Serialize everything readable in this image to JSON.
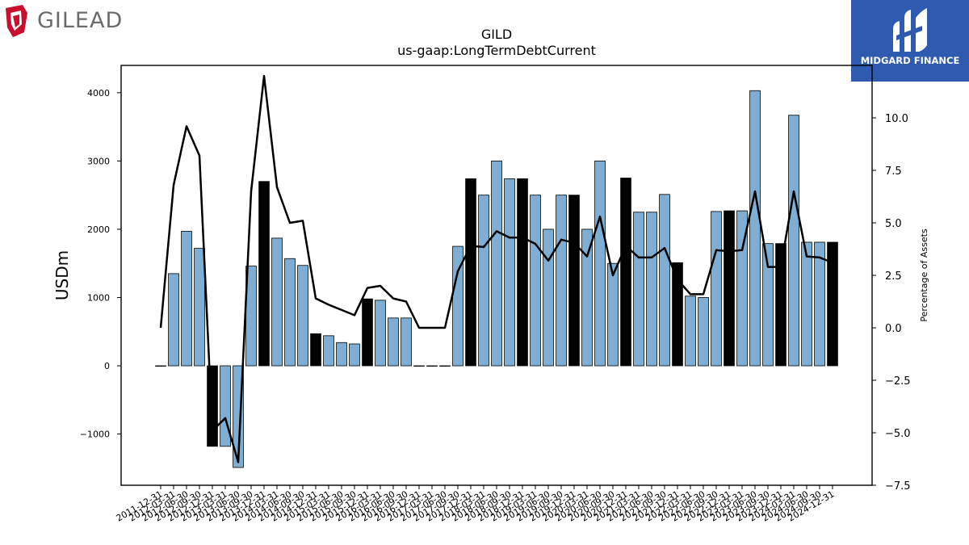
{
  "brand": {
    "left_logo_text": "GILEAD",
    "right_logo_text": "MIDGARD FINANCE",
    "left_logo_color": "#c8102e",
    "right_logo_bg": "#2e5bb0"
  },
  "chart_data": {
    "type": "bar",
    "title": "GILD",
    "subtitle": "us-gaap:LongTermDebtCurrent",
    "ylabel": "USDm",
    "y2label": "Percentage of Assets",
    "ylim": [
      -1750,
      4400
    ],
    "y2lim": [
      -7.5,
      12.5
    ],
    "yticks": [
      -1000,
      0,
      1000,
      2000,
      3000,
      4000
    ],
    "yticklabels": [
      "−1000",
      "0",
      "1000",
      "2000",
      "3000",
      "4000"
    ],
    "y2ticks": [
      -7.5,
      -5.0,
      -2.5,
      0.0,
      2.5,
      5.0,
      7.5,
      10.0
    ],
    "y2ticklabels": [
      "−7.5",
      "−5.0",
      "−2.5",
      "0.0",
      "2.5",
      "5.0",
      "7.5",
      "10.0"
    ],
    "grid": false,
    "bar_colors": {
      "quarter": "#7eaed3",
      "year_end": "#000000"
    },
    "line_color": "#000000",
    "categories": [
      "2011-12-31",
      "2012-03-31",
      "2012-06-30",
      "2012-09-30",
      "2012-12-31",
      "2013-03-31",
      "2013-06-30",
      "2013-09-30",
      "2013-12-31",
      "2014-03-31",
      "2014-06-30",
      "2014-09-30",
      "2014-12-31",
      "2015-03-31",
      "2015-06-30",
      "2015-09-30",
      "2015-12-31",
      "2016-03-31",
      "2016-06-30",
      "2016-09-30",
      "2016-12-31",
      "2017-03-31",
      "2017-06-30",
      "2017-09-30",
      "2017-12-31",
      "2018-03-31",
      "2018-06-30",
      "2018-09-30",
      "2018-12-31",
      "2019-03-31",
      "2019-06-30",
      "2019-09-30",
      "2019-12-31",
      "2020-03-31",
      "2020-06-30",
      "2020-09-30",
      "2020-12-31",
      "2021-03-31",
      "2021-06-30",
      "2021-09-30",
      "2021-12-31",
      "2022-03-31",
      "2022-06-30",
      "2022-09-30",
      "2022-12-31",
      "2023-03-31",
      "2023-06-30",
      "2023-09-30",
      "2023-12-31",
      "2024-03-31",
      "2024-06-30",
      "2024-09-30",
      "2024-12-31"
    ],
    "xticklabels": [
      "2011-12-31",
      "2012-03-31",
      "2012-06-30",
      "2012-09-30",
      "2012-12-31",
      "2013-03-31",
      "2013-06-30",
      "2013-09-30",
      "2013-12-31",
      "2014-03-31",
      "2014-06-30",
      "2014-09-30",
      "2014-12-31",
      "2015-03-31",
      "2015-06-30",
      "2015-09-30",
      "2015-12-31",
      "2016-03-31",
      "2016-06-30",
      "2016-09-30",
      "2016-12-31",
      "2017-03-31",
      "2017-06-30",
      "2017-09-30",
      "2017-12-31",
      "2018-03-31",
      "2018-06-30",
      "2018-09-30",
      "2018-12-31",
      "2019-03-31",
      "2019-06-30",
      "2019-09-30",
      "2019-12-31",
      "2020-03-31",
      "2020-06-30",
      "2020-09-30",
      "2020-12-31",
      "2021-03-31",
      "2021-06-30",
      "2021-09-30",
      "2021-12-31",
      "2022-03-31",
      "2022-06-30",
      "2022-09-30",
      "2022-12-31",
      "2023-03-31",
      "2023-06-30",
      "2023-09-30",
      "2023-12-31",
      "2024-03-31",
      "2024-06-30",
      "2024-09-30",
      "2024-12-31"
    ],
    "series": [
      {
        "type": "bar",
        "axis": "left",
        "values": [
          0,
          1350,
          1970,
          1720,
          -1180,
          -1180,
          -1490,
          1460,
          2700,
          1870,
          1570,
          1470,
          470,
          440,
          340,
          320,
          980,
          960,
          700,
          700,
          0,
          0,
          0,
          1750,
          2740,
          2500,
          3000,
          2740,
          2740,
          2500,
          2000,
          2500,
          2500,
          2000,
          3000,
          1500,
          2750,
          2250,
          2250,
          2510,
          1510,
          1020,
          1000,
          2260,
          2270,
          2270,
          4030,
          1790,
          1790,
          3670,
          1810,
          1810,
          1810
        ],
        "year_end": [
          true,
          false,
          false,
          false,
          true,
          false,
          false,
          false,
          true,
          false,
          false,
          false,
          true,
          false,
          false,
          false,
          true,
          false,
          false,
          false,
          true,
          false,
          false,
          false,
          true,
          false,
          false,
          false,
          true,
          false,
          false,
          false,
          true,
          false,
          false,
          false,
          true,
          false,
          false,
          false,
          true,
          false,
          false,
          false,
          true,
          false,
          false,
          false,
          true,
          false,
          false,
          false,
          true
        ]
      },
      {
        "type": "line",
        "axis": "right",
        "values": [
          0.0,
          6.8,
          9.6,
          8.2,
          -4.9,
          -4.3,
          -6.4,
          6.5,
          12.0,
          6.7,
          5.0,
          5.1,
          1.4,
          1.1,
          0.85,
          0.6,
          1.9,
          2.0,
          1.4,
          1.25,
          0.0,
          0.0,
          0.0,
          2.7,
          3.9,
          3.85,
          4.6,
          4.3,
          4.3,
          4.0,
          3.2,
          4.2,
          4.05,
          3.4,
          5.3,
          2.5,
          3.9,
          3.35,
          3.35,
          3.8,
          2.3,
          1.6,
          1.6,
          3.7,
          3.65,
          3.7,
          6.5,
          2.9,
          2.9,
          6.5,
          3.4,
          3.35,
          3.1
        ]
      }
    ]
  }
}
